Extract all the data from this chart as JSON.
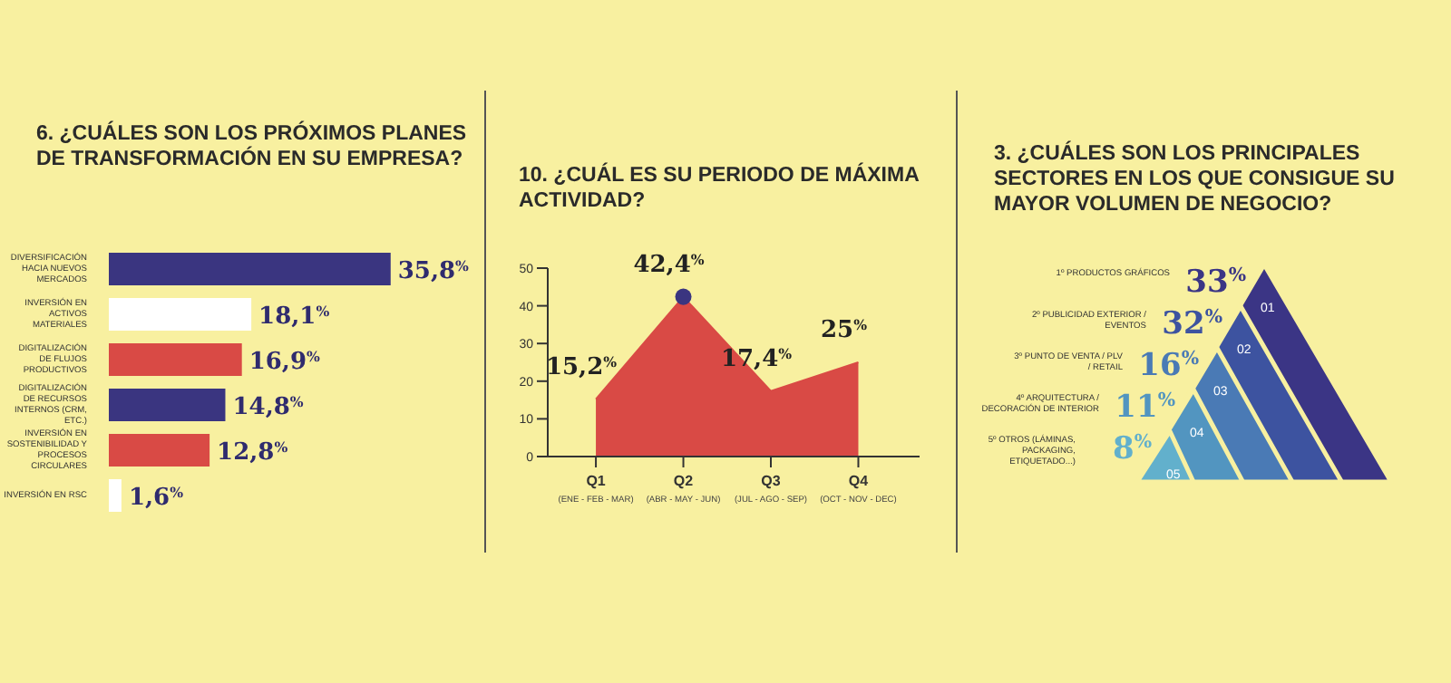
{
  "chart_data": [
    {
      "type": "bar",
      "orientation": "horizontal",
      "title": "6. ¿CUÁLES SON LOS PRÓXIMOS PLANES DE TRANSFORMACIÓN EN SU EMPRESA?",
      "categories": [
        "DIVERSIFICACIÓN HACIA NUEVOS MERCADOS",
        "INVERSIÓN EN ACTIVOS MATERIALES",
        "DIGITALIZACIÓN DE FLUJOS PRODUCTIVOS",
        "DIGITALIZACIÓN DE RECURSOS INTERNOS (CRM, ETC.)",
        "INVERSIÓN EN SOSTENIBILIDAD Y PROCESOS CIRCULARES",
        "INVERSIÓN EN RSC"
      ],
      "values": [
        35.8,
        18.1,
        16.9,
        14.8,
        12.8,
        1.6
      ],
      "colors": [
        "#3a3580",
        "#ffffff",
        "#d94a45",
        "#3a3580",
        "#d94a45",
        "#ffffff"
      ],
      "value_labels": [
        "35,8$^{%}$",
        "18,1$^{%}$",
        "16,9$^{%}$",
        "14,8$^{%}$",
        "12,8$^{%}$",
        "1,6$^{%}$"
      ],
      "tick_labels": "y"
    },
    {
      "type": "area",
      "title": "10. ¿CUÁL ES SU PERIODO DE MÁXIMA ACTIVIDAD?",
      "categories": [
        "Q1 $_{(ENE - FEB - MAR)}$",
        "Q2 $_{(ABR - MAY - JUN)}$",
        "Q3 $_{(JUL - AGO - SEP)}$",
        "Q4 $_{(OCT - NOV - DEC)}$"
      ],
      "series": [
        {
          "type": "area",
          "color": "#d94a45",
          "values": [
            15.2,
            42.4,
            17.4,
            25
          ],
          "value_labels": [
            "15,2$^{%}$",
            "42,4$^{%}$",
            "17,4$^{%}$",
            "25$^{%}$"
          ]
        },
        {
          "type": "scatter",
          "color": "#3a3580",
          "x": [
            "Q2 $_{(ABR - MAY - JUN)}$"
          ],
          "values": [
            42.4
          ]
        }
      ],
      "ylim": [
        0,
        50
      ],
      "yticks": [
        0,
        10,
        20,
        30,
        40,
        50
      ]
    },
    {
      "type": "other",
      "title": "3. ¿CUÁLES SON LOS PRINCIPALES SECTORES EN LOS QUE CONSIGUE SU MAYOR VOLUMEN DE NEGOCIO?",
      "categories": [
        "1º PRODUCTOS GRÁFICOS",
        "2º PUBLICIDAD EXTERIOR / EVENTOS",
        "3º PUNTO DE VENTA / PLV / RETAIL",
        "4º ARQUITECTURA / DECORACIÓN DE INTERIOR",
        "5º OTROS (LÁMINAS, PACKAGING, ETIQUETADO...)"
      ],
      "value_labels": [
        "33$^{%}$",
        "32$^{%}$",
        "16$^{%}$",
        "11$^{%}$",
        "8$^{%}$"
      ],
      "colors": [
        "#3b3585",
        "#3d53a0",
        "#4a7ab5",
        "#5295c0",
        "#62b0cc"
      ],
      "annotations": [
        "01",
        "02",
        "03",
        "04",
        "05"
      ]
    }
  ]
}
